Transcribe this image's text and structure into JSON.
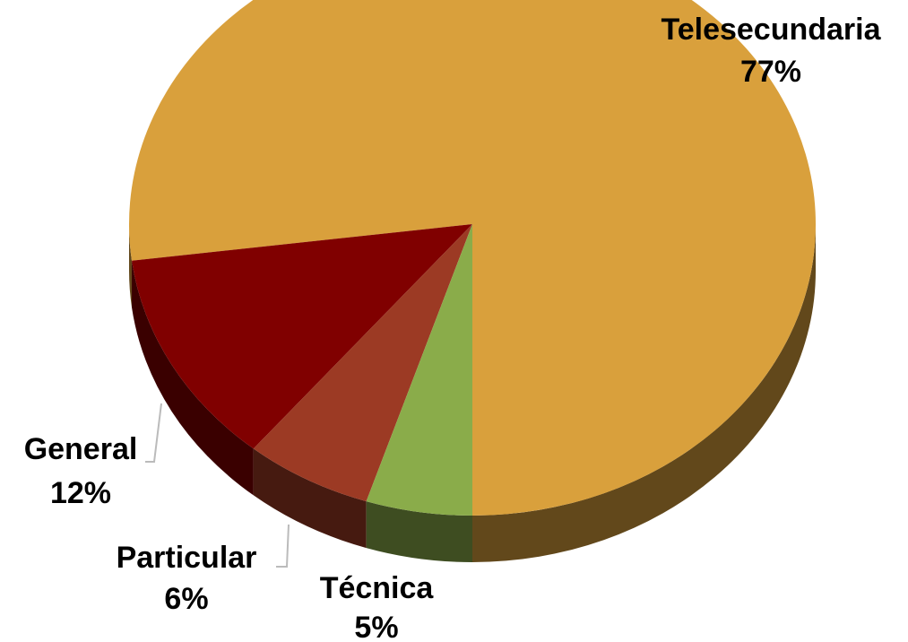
{
  "chart_data": {
    "type": "pie",
    "categories": [
      "Telesecundaria",
      "General",
      "Particular",
      "Técnica"
    ],
    "values": [
      77,
      12,
      6,
      5
    ],
    "value_labels": [
      "77%",
      "12%",
      "6%",
      "5%"
    ],
    "colors": [
      "#d9a03c",
      "#800000",
      "#9c3a24",
      "#8aac4a"
    ]
  }
}
